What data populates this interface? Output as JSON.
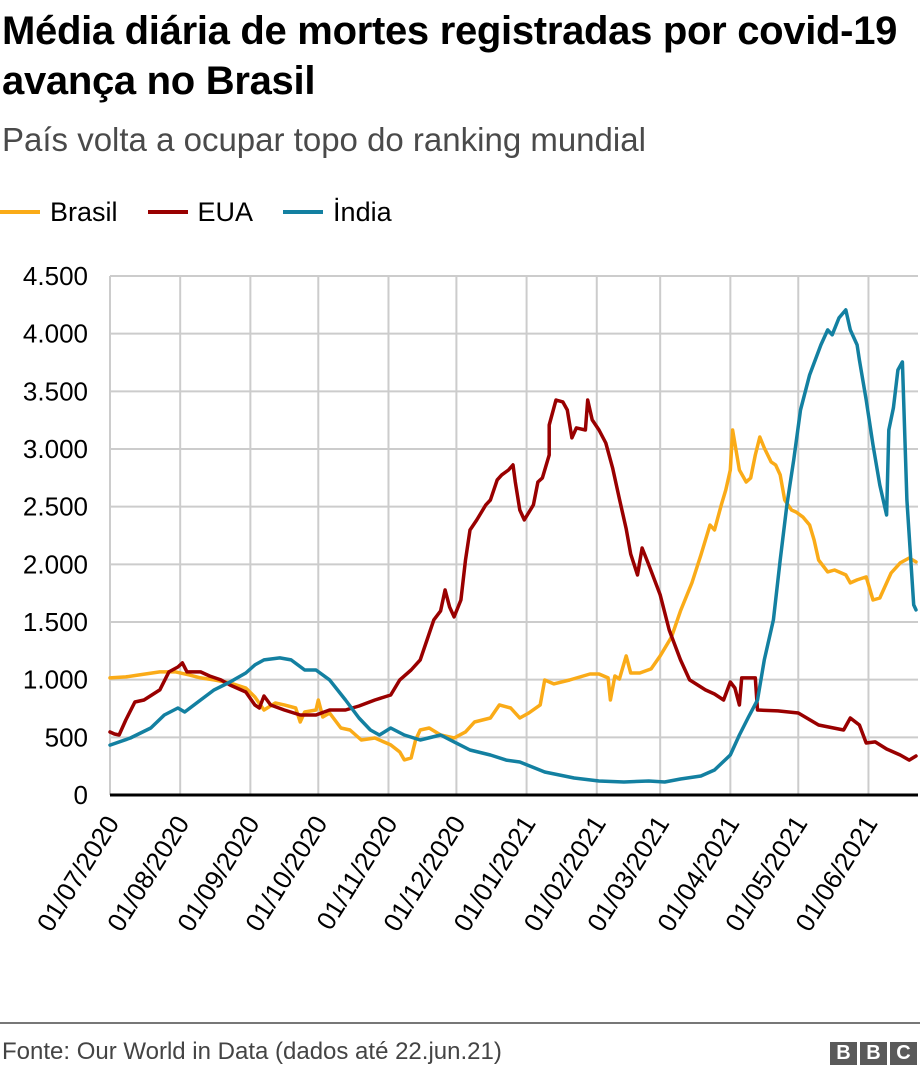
{
  "header": {
    "title": "Média diária de mortes registradas por covid-19 avança no Brasil",
    "subtitle": "País volta a ocupar topo do ranking mundial"
  },
  "footer": {
    "source": "Fonte: Our World in Data (dados até 22.jun.21)",
    "logo_text": [
      "B",
      "B",
      "C"
    ]
  },
  "chart_data": {
    "type": "line",
    "title": "Média diária de mortes registradas por covid-19 avança no Brasil",
    "subtitle": "País volta a ocupar topo do ranking mundial",
    "xlabel": "",
    "ylabel": "",
    "x_unit": "days since 01/07/2020",
    "start_date": "2020-07-01",
    "xlim": [
      0,
      356
    ],
    "ylim": [
      0,
      4500
    ],
    "grid": true,
    "legend_position": "top-left",
    "y_ticks": [
      0,
      500,
      1000,
      1500,
      2000,
      2500,
      3000,
      3500,
      4000,
      4500
    ],
    "y_tick_labels": [
      "0",
      "500",
      "1.000",
      "1.500",
      "2.000",
      "2.500",
      "3.000",
      "3.500",
      "4.000",
      "4.500"
    ],
    "x_ticks": [
      0,
      31,
      62,
      92,
      123,
      153,
      184,
      215,
      243,
      274,
      304,
      335
    ],
    "x_tick_labels": [
      "01/07/2020",
      "01/08/2020",
      "01/09/2020",
      "01/10/2020",
      "01/11/2020",
      "01/12/2020",
      "01/01/2021",
      "01/02/2021",
      "01/03/2021",
      "01/04/2021",
      "01/05/2021",
      "01/06/2021"
    ],
    "series": [
      {
        "name": "Brasil",
        "color": "#FAAB18",
        "points": [
          [
            0,
            1015
          ],
          [
            7,
            1024
          ],
          [
            13,
            1041
          ],
          [
            22,
            1067
          ],
          [
            29,
            1067
          ],
          [
            35,
            1041
          ],
          [
            40,
            1015
          ],
          [
            46,
            998
          ],
          [
            53,
            972
          ],
          [
            60,
            928
          ],
          [
            64,
            850
          ],
          [
            68,
            737
          ],
          [
            73,
            798
          ],
          [
            77,
            781
          ],
          [
            82,
            754
          ],
          [
            84,
            633
          ],
          [
            86,
            720
          ],
          [
            91,
            737
          ],
          [
            92,
            824
          ],
          [
            94,
            676
          ],
          [
            97,
            711
          ],
          [
            102,
            581
          ],
          [
            106,
            564
          ],
          [
            111,
            477
          ],
          [
            117,
            494
          ],
          [
            124,
            434
          ],
          [
            128,
            373
          ],
          [
            130,
            304
          ],
          [
            133,
            321
          ],
          [
            135,
            477
          ],
          [
            137,
            564
          ],
          [
            141,
            581
          ],
          [
            146,
            520
          ],
          [
            152,
            494
          ],
          [
            157,
            547
          ],
          [
            161,
            633
          ],
          [
            168,
            668
          ],
          [
            172,
            781
          ],
          [
            177,
            754
          ],
          [
            181,
            668
          ],
          [
            185,
            711
          ],
          [
            190,
            781
          ],
          [
            192,
            997
          ],
          [
            196,
            963
          ],
          [
            203,
            997
          ],
          [
            212,
            1049
          ],
          [
            216,
            1049
          ],
          [
            220,
            1015
          ],
          [
            221,
            824
          ],
          [
            223,
            1032
          ],
          [
            225,
            1006
          ],
          [
            228,
            1206
          ],
          [
            230,
            1058
          ],
          [
            234,
            1058
          ],
          [
            239,
            1093
          ],
          [
            243,
            1206
          ],
          [
            248,
            1370
          ],
          [
            252,
            1596
          ],
          [
            257,
            1839
          ],
          [
            261,
            2081
          ],
          [
            265,
            2341
          ],
          [
            267,
            2298
          ],
          [
            270,
            2515
          ],
          [
            272,
            2645
          ],
          [
            274,
            2818
          ],
          [
            275,
            3165
          ],
          [
            278,
            2818
          ],
          [
            281,
            2714
          ],
          [
            283,
            2749
          ],
          [
            285,
            2948
          ],
          [
            287,
            3104
          ],
          [
            289,
            3009
          ],
          [
            292,
            2888
          ],
          [
            294,
            2862
          ],
          [
            296,
            2775
          ],
          [
            298,
            2558
          ],
          [
            301,
            2471
          ],
          [
            303,
            2454
          ],
          [
            306,
            2411
          ],
          [
            309,
            2341
          ],
          [
            311,
            2211
          ],
          [
            313,
            2038
          ],
          [
            317,
            1934
          ],
          [
            320,
            1951
          ],
          [
            325,
            1908
          ],
          [
            327,
            1839
          ],
          [
            330,
            1865
          ],
          [
            334,
            1891
          ],
          [
            337,
            1691
          ],
          [
            340,
            1708
          ],
          [
            345,
            1925
          ],
          [
            349,
            2012
          ],
          [
            353,
            2055
          ],
          [
            356,
            2021
          ]
        ]
      },
      {
        "name": "EUA",
        "color": "#990000",
        "points": [
          [
            0,
            546
          ],
          [
            2,
            529
          ],
          [
            4,
            520
          ],
          [
            7,
            650
          ],
          [
            11,
            806
          ],
          [
            15,
            824
          ],
          [
            22,
            911
          ],
          [
            26,
            1067
          ],
          [
            30,
            1110
          ],
          [
            32,
            1145
          ],
          [
            34,
            1067
          ],
          [
            40,
            1067
          ],
          [
            44,
            1032
          ],
          [
            49,
            998
          ],
          [
            53,
            954
          ],
          [
            60,
            893
          ],
          [
            64,
            780
          ],
          [
            66,
            754
          ],
          [
            68,
            858
          ],
          [
            71,
            780
          ],
          [
            77,
            737
          ],
          [
            84,
            694
          ],
          [
            91,
            694
          ],
          [
            97,
            737
          ],
          [
            104,
            737
          ],
          [
            110,
            772
          ],
          [
            117,
            824
          ],
          [
            124,
            867
          ],
          [
            128,
            998
          ],
          [
            133,
            1084
          ],
          [
            137,
            1171
          ],
          [
            140,
            1344
          ],
          [
            143,
            1518
          ],
          [
            146,
            1596
          ],
          [
            148,
            1778
          ],
          [
            150,
            1630
          ],
          [
            152,
            1544
          ],
          [
            155,
            1691
          ],
          [
            157,
            2038
          ],
          [
            159,
            2298
          ],
          [
            162,
            2385
          ],
          [
            166,
            2515
          ],
          [
            168,
            2558
          ],
          [
            171,
            2732
          ],
          [
            173,
            2775
          ],
          [
            176,
            2818
          ],
          [
            178,
            2862
          ],
          [
            179,
            2714
          ],
          [
            181,
            2471
          ],
          [
            183,
            2385
          ],
          [
            187,
            2515
          ],
          [
            189,
            2714
          ],
          [
            191,
            2749
          ],
          [
            194,
            2948
          ],
          [
            194,
            3208
          ],
          [
            197,
            3425
          ],
          [
            200,
            3408
          ],
          [
            202,
            3338
          ],
          [
            204,
            3096
          ],
          [
            206,
            3183
          ],
          [
            210,
            3165
          ],
          [
            211,
            3425
          ],
          [
            213,
            3252
          ],
          [
            216,
            3165
          ],
          [
            219,
            3052
          ],
          [
            222,
            2836
          ],
          [
            225,
            2567
          ],
          [
            228,
            2307
          ],
          [
            230,
            2090
          ],
          [
            233,
            1908
          ],
          [
            235,
            2142
          ],
          [
            238,
            1995
          ],
          [
            243,
            1735
          ],
          [
            247,
            1431
          ],
          [
            252,
            1171
          ],
          [
            256,
            998
          ],
          [
            263,
            911
          ],
          [
            267,
            876
          ],
          [
            271,
            824
          ],
          [
            274,
            980
          ],
          [
            276,
            928
          ],
          [
            278,
            780
          ],
          [
            279,
            1015
          ],
          [
            285,
            1015
          ],
          [
            286,
            737
          ],
          [
            295,
            729
          ],
          [
            304,
            711
          ],
          [
            313,
            607
          ],
          [
            324,
            564
          ],
          [
            327,
            668
          ],
          [
            331,
            607
          ],
          [
            334,
            451
          ],
          [
            338,
            460
          ],
          [
            343,
            399
          ],
          [
            349,
            347
          ],
          [
            353,
            303
          ],
          [
            356,
            338
          ]
        ]
      },
      {
        "name": "İndia",
        "color": "#1380A1",
        "points": [
          [
            0,
            433
          ],
          [
            9,
            494
          ],
          [
            18,
            581
          ],
          [
            24,
            694
          ],
          [
            30,
            754
          ],
          [
            33,
            720
          ],
          [
            40,
            824
          ],
          [
            46,
            911
          ],
          [
            53,
            980
          ],
          [
            60,
            1058
          ],
          [
            64,
            1128
          ],
          [
            68,
            1171
          ],
          [
            75,
            1189
          ],
          [
            80,
            1171
          ],
          [
            86,
            1084
          ],
          [
            91,
            1084
          ],
          [
            97,
            998
          ],
          [
            104,
            824
          ],
          [
            110,
            668
          ],
          [
            115,
            564
          ],
          [
            119,
            520
          ],
          [
            124,
            581
          ],
          [
            130,
            520
          ],
          [
            137,
            477
          ],
          [
            146,
            520
          ],
          [
            152,
            460
          ],
          [
            159,
            390
          ],
          [
            168,
            347
          ],
          [
            175,
            303
          ],
          [
            181,
            286
          ],
          [
            192,
            199
          ],
          [
            205,
            147
          ],
          [
            216,
            121
          ],
          [
            227,
            113
          ],
          [
            238,
            121
          ],
          [
            245,
            113
          ],
          [
            252,
            139
          ],
          [
            261,
            165
          ],
          [
            267,
            217
          ],
          [
            274,
            347
          ],
          [
            278,
            520
          ],
          [
            282,
            676
          ],
          [
            286,
            824
          ],
          [
            289,
            1171
          ],
          [
            293,
            1518
          ],
          [
            296,
            2038
          ],
          [
            299,
            2515
          ],
          [
            302,
            2905
          ],
          [
            305,
            3338
          ],
          [
            309,
            3642
          ],
          [
            314,
            3903
          ],
          [
            317,
            4033
          ],
          [
            319,
            3990
          ],
          [
            322,
            4137
          ],
          [
            325,
            4206
          ],
          [
            327,
            4033
          ],
          [
            330,
            3903
          ],
          [
            331,
            3772
          ],
          [
            334,
            3425
          ],
          [
            337,
            3035
          ],
          [
            340,
            2688
          ],
          [
            343,
            2428
          ],
          [
            344,
            3165
          ],
          [
            346,
            3356
          ],
          [
            348,
            3685
          ],
          [
            350,
            3755
          ],
          [
            352,
            2558
          ],
          [
            355,
            1648
          ],
          [
            356,
            1605
          ]
        ]
      }
    ]
  }
}
